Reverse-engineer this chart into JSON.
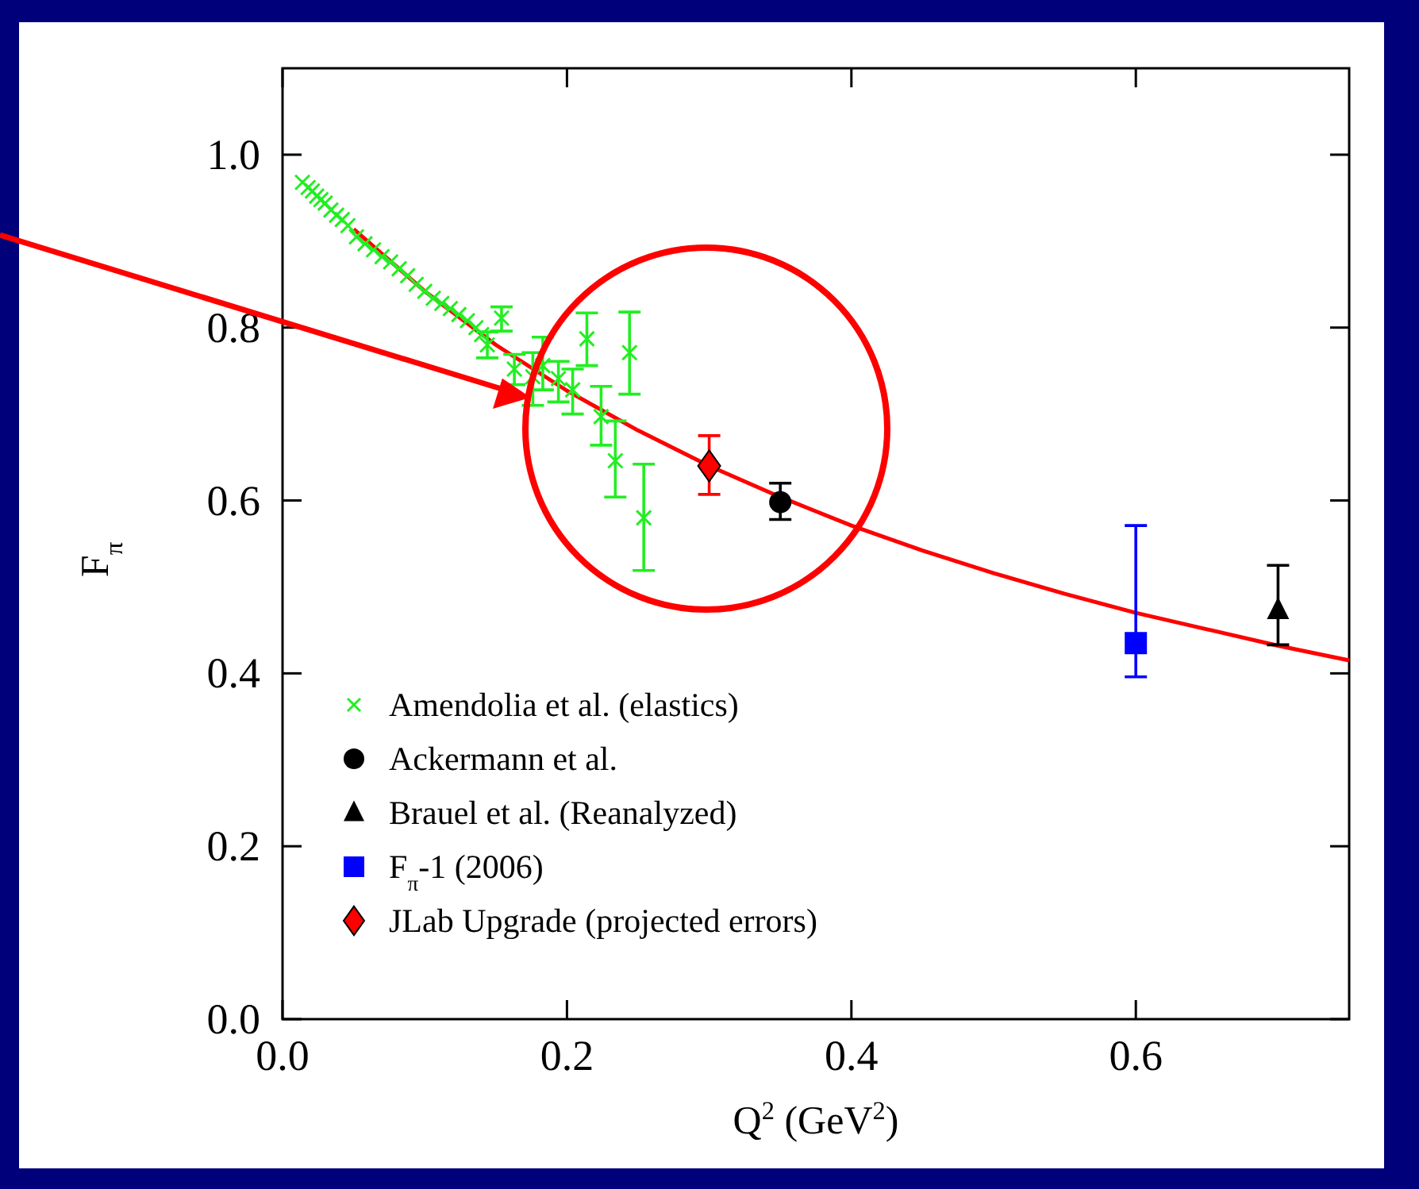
{
  "chart_data": {
    "type": "scatter",
    "xlabel": "Q$^{2}$ (GeV$^{2}$)",
    "ylabel": "F$_{π}$",
    "xlim": [
      0,
      0.75
    ],
    "ylim": [
      0,
      1.1
    ],
    "xticks": [
      {
        "value": 0,
        "label": "0.0"
      },
      {
        "value": 0.2,
        "label": "0.2"
      },
      {
        "value": 0.4,
        "label": "0.4"
      },
      {
        "value": 0.6,
        "label": "0.6"
      }
    ],
    "yticks": [
      {
        "value": 0,
        "label": "0.0"
      },
      {
        "value": 0.2,
        "label": "0.2"
      },
      {
        "value": 0.4,
        "label": "0.4"
      },
      {
        "value": 0.6,
        "label": "0.6"
      },
      {
        "value": 0.8,
        "label": "0.8"
      },
      {
        "value": 1,
        "label": "1.0"
      }
    ],
    "grid": false,
    "legend": "bottom left",
    "series": [
      {
        "type": "line",
        "color": "#ff0000",
        "marker": "none",
        "line_style": "solid",
        "x": [
          0.05,
          0.1,
          0.15,
          0.2,
          0.25,
          0.3,
          0.35,
          0.4,
          0.45,
          0.5,
          0.55,
          0.6,
          0.65,
          0.7,
          0.75
        ],
        "values": [
          0.914,
          0.842,
          0.78,
          0.727,
          0.681,
          0.64,
          0.604,
          0.571,
          0.542,
          0.516,
          0.492,
          0.47,
          0.451,
          0.432,
          0.415
        ]
      },
      {
        "name": "Amendolia et al. (elastics)",
        "color": "#22ee22",
        "marker": "cross",
        "x": [
          0.014,
          0.018,
          0.021,
          0.024,
          0.027,
          0.03,
          0.034,
          0.038,
          0.042,
          0.046,
          0.052,
          0.058,
          0.064,
          0.07,
          0.076,
          0.082,
          0.088,
          0.094,
          0.1,
          0.106,
          0.112,
          0.118,
          0.124,
          0.13,
          0.136,
          0.14,
          0.144,
          0.154,
          0.163,
          0.176,
          0.183,
          0.194,
          0.204,
          0.214,
          0.224,
          0.234,
          0.244,
          0.254
        ],
        "values": [
          0.968,
          0.962,
          0.958,
          0.952,
          0.948,
          0.944,
          0.936,
          0.93,
          0.925,
          0.918,
          0.905,
          0.897,
          0.89,
          0.882,
          0.876,
          0.868,
          0.86,
          0.85,
          0.842,
          0.834,
          0.828,
          0.822,
          0.815,
          0.808,
          0.8,
          0.792,
          0.78,
          0.811,
          0.752,
          0.743,
          0.756,
          0.741,
          0.728,
          0.787,
          0.697,
          0.646,
          0.771,
          0.58
        ],
        "errors": [
          null,
          null,
          null,
          null,
          null,
          null,
          null,
          null,
          null,
          null,
          null,
          null,
          null,
          null,
          null,
          null,
          null,
          null,
          null,
          null,
          null,
          null,
          null,
          null,
          null,
          null,
          [
            0.765,
            0.795
          ],
          [
            0.796,
            0.824
          ],
          [
            0.734,
            0.769
          ],
          [
            0.71,
            0.771
          ],
          [
            0.728,
            0.789
          ],
          [
            0.714,
            0.761
          ],
          [
            0.7,
            0.752
          ],
          [
            0.756,
            0.817
          ],
          [
            0.664,
            0.732
          ],
          [
            0.604,
            0.692
          ],
          [
            0.723,
            0.818
          ],
          [
            0.519,
            0.642
          ]
        ]
      },
      {
        "name": "Ackermann et al.",
        "color": "#000000",
        "marker": "circle",
        "x": [
          0.35
        ],
        "values": [
          0.598
        ],
        "errors": [
          [
            0.578,
            0.62
          ]
        ]
      },
      {
        "name": "Brauel et al. (Reanalyzed)",
        "color": "#000000",
        "marker": "triangle",
        "x": [
          0.7
        ],
        "values": [
          0.473
        ],
        "errors": [
          [
            0.433,
            0.525
          ]
        ]
      },
      {
        "name": "F$_{π}$-1 (2006)",
        "color": "#0000ff",
        "marker": "square",
        "x": [
          0.6
        ],
        "values": [
          0.435
        ],
        "errors": [
          [
            0.396,
            0.571
          ]
        ]
      },
      {
        "name": "JLab Upgrade (projected errors)",
        "color": "#ff0000",
        "marker": "diamond",
        "x": [
          0.3
        ],
        "values": [
          0.64
        ],
        "errors": [
          [
            0.607,
            0.675
          ]
        ]
      }
    ]
  }
}
